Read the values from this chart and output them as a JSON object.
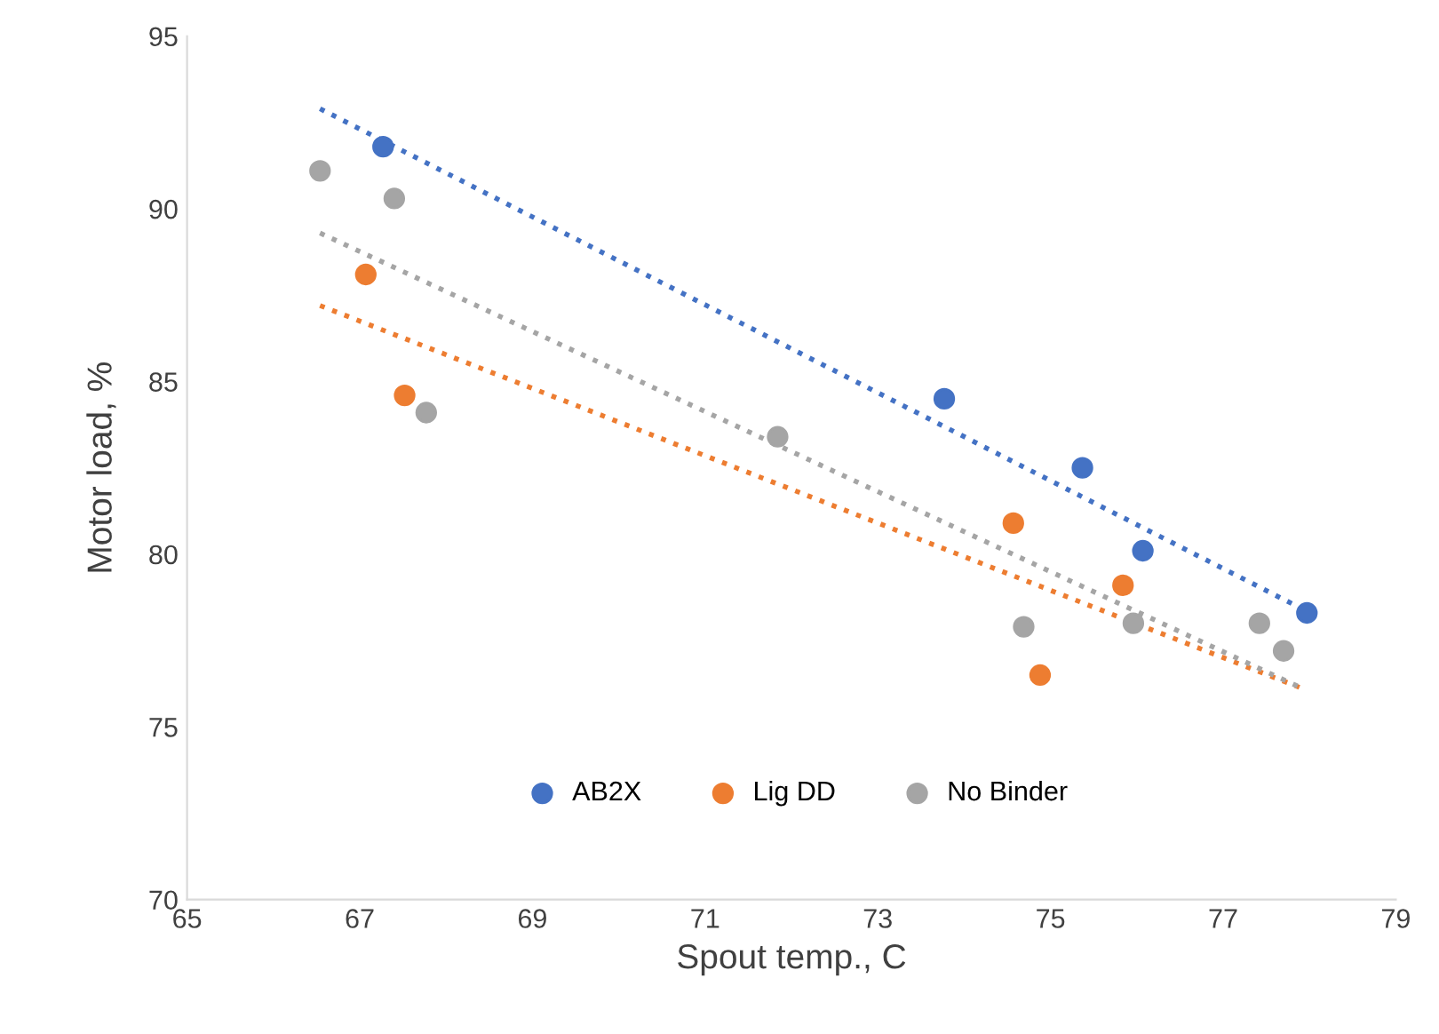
{
  "chart_data": {
    "type": "scatter",
    "xlabel": "Spout temp., C",
    "ylabel": "Motor load, %",
    "xlim": [
      65,
      79
    ],
    "xticks": [
      65,
      67,
      69,
      71,
      73,
      75,
      77,
      79
    ],
    "ylim": [
      70,
      95
    ],
    "yticks": [
      70,
      75,
      80,
      85,
      90,
      95
    ],
    "grid": false,
    "legend": "bottom",
    "marker": "circle",
    "series": [
      {
        "name": "AB2X",
        "color": "#4472c4",
        "x": [
          67.27,
          73.77,
          75.37,
          76.07,
          77.97
        ],
        "values": [
          91.8,
          84.5,
          82.5,
          80.1,
          78.3
        ]
      },
      {
        "name": "Lig DD",
        "color": "#ed7d31",
        "x": [
          67.07,
          67.52,
          74.57,
          74.88,
          75.84
        ],
        "values": [
          88.1,
          84.6,
          80.9,
          76.5,
          79.1
        ]
      },
      {
        "name": "No Binder",
        "color": "#a5a5a5",
        "x": [
          66.54,
          67.4,
          67.77,
          71.84,
          74.69,
          75.96,
          77.42,
          77.7
        ],
        "values": [
          91.1,
          90.3,
          84.1,
          83.4,
          77.9,
          78.0,
          78.0,
          77.2
        ]
      },
      {
        "type": "line",
        "line_style": "dotted",
        "marker": "none",
        "color": "#4472c4",
        "x": [
          66.54,
          77.93
        ],
        "values": [
          92.9,
          78.4
        ]
      },
      {
        "type": "line",
        "line_style": "dotted",
        "marker": "none",
        "color": "#ed7d31",
        "x": [
          66.54,
          77.93
        ],
        "values": [
          87.2,
          76.1
        ]
      },
      {
        "type": "line",
        "line_style": "dotted",
        "marker": "none",
        "color": "#a5a5a5",
        "x": [
          66.54,
          77.93
        ],
        "values": [
          89.3,
          76.1
        ]
      }
    ]
  }
}
